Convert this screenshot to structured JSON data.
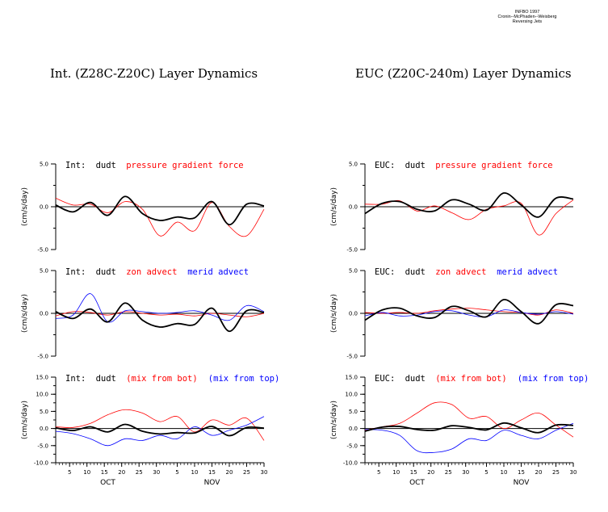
{
  "header": {
    "credit_lines": [
      "INFBO 1997",
      "Cronin--McPhaden--Weisberg",
      "Reversing Jets"
    ]
  },
  "panel_titles": [
    "Int. (Z28C-Z20C) Layer Dynamics",
    "EUC (Z20C-240m) Layer Dynamics"
  ],
  "colors": {
    "dudt": "#000000",
    "red": "#ff0000",
    "blue": "#0000ff"
  },
  "chart_data": [
    {
      "type": "line",
      "region": "Int:",
      "ylabel": "(cm/s/day)",
      "ylim": [
        -5,
        5
      ],
      "yticks": [
        "5.0",
        "0.0",
        "-5.0"
      ],
      "x": [
        1,
        6,
        11,
        16,
        21,
        26,
        31,
        36,
        41,
        46,
        51,
        56,
        61
      ],
      "series": [
        {
          "name": "dudt",
          "color": "#000000",
          "values": [
            0.2,
            -0.6,
            0.5,
            -1.0,
            1.2,
            -0.8,
            -1.6,
            -1.2,
            -1.3,
            0.6,
            -2.1,
            0.3,
            0.1
          ]
        },
        {
          "name": "pressure gradient force",
          "color": "#ff0000",
          "values": [
            1.0,
            0.2,
            0.3,
            -0.7,
            0.6,
            -0.3,
            -3.4,
            -1.8,
            -2.8,
            0.5,
            -2.3,
            -3.4,
            -0.3
          ]
        }
      ]
    },
    {
      "type": "line",
      "region": "EUC:",
      "ylabel": "(cm/s/day)",
      "ylim": [
        -5,
        5
      ],
      "yticks": [
        "5.0",
        "0.0",
        "-5.0"
      ],
      "x": [
        1,
        6,
        11,
        16,
        21,
        26,
        31,
        36,
        41,
        46,
        51,
        56,
        61
      ],
      "series": [
        {
          "name": "dudt",
          "color": "#000000",
          "values": [
            -0.8,
            0.4,
            0.6,
            -0.3,
            -0.5,
            0.8,
            0.3,
            -0.4,
            1.6,
            0.2,
            -1.2,
            1.0,
            0.9
          ]
        },
        {
          "name": "pressure gradient force",
          "color": "#ff0000",
          "values": [
            0.3,
            0.3,
            0.7,
            -0.5,
            0.1,
            -0.7,
            -1.5,
            -0.3,
            0.1,
            0.4,
            -3.3,
            -0.8,
            0.8
          ]
        }
      ]
    },
    {
      "type": "line",
      "region": "Int:",
      "ylabel": "(cm/s/day)",
      "ylim": [
        -5,
        5
      ],
      "yticks": [
        "5.0",
        "0.0",
        "-5.0"
      ],
      "x": [
        1,
        6,
        11,
        16,
        21,
        26,
        31,
        36,
        41,
        46,
        51,
        56,
        61
      ],
      "series": [
        {
          "name": "dudt",
          "color": "#000000",
          "values": [
            0.2,
            -0.6,
            0.5,
            -1.0,
            1.2,
            -0.8,
            -1.6,
            -1.2,
            -1.3,
            0.6,
            -2.1,
            0.3,
            0.1
          ]
        },
        {
          "name": "zon advect",
          "color": "#ff0000",
          "values": [
            -0.3,
            0.2,
            0.1,
            -0.2,
            0.2,
            0.0,
            -0.2,
            -0.1,
            -0.3,
            0.0,
            -0.2,
            -0.4,
            0.0
          ]
        },
        {
          "name": "merid advect",
          "color": "#0000ff",
          "values": [
            -0.6,
            -0.2,
            2.3,
            -1.0,
            0.3,
            0.2,
            0.0,
            0.1,
            0.3,
            -0.2,
            -0.8,
            0.9,
            0.2
          ]
        }
      ]
    },
    {
      "type": "line",
      "region": "EUC:",
      "ylabel": "(cm/s/day)",
      "ylim": [
        -5,
        5
      ],
      "yticks": [
        "5.0",
        "0.0",
        "-5.0"
      ],
      "x": [
        1,
        6,
        11,
        16,
        21,
        26,
        31,
        36,
        41,
        46,
        51,
        56,
        61
      ],
      "series": [
        {
          "name": "dudt",
          "color": "#000000",
          "values": [
            -0.8,
            0.4,
            0.6,
            -0.3,
            -0.5,
            0.8,
            0.3,
            -0.4,
            1.6,
            0.2,
            -1.2,
            1.0,
            0.9
          ]
        },
        {
          "name": "zon advect",
          "color": "#ff0000",
          "values": [
            0.1,
            0.0,
            0.1,
            0.0,
            0.3,
            0.5,
            0.6,
            0.4,
            0.2,
            0.1,
            -0.2,
            0.4,
            0.0
          ]
        },
        {
          "name": "merid advect",
          "color": "#0000ff",
          "values": [
            -0.3,
            0.1,
            -0.3,
            -0.2,
            0.2,
            0.3,
            -0.2,
            -0.4,
            0.4,
            0.1,
            -0.1,
            0.2,
            -0.1
          ]
        }
      ]
    },
    {
      "type": "line",
      "region": "Int:",
      "ylabel": "(cm/s/day)",
      "ylim": [
        -10,
        15
      ],
      "yticks": [
        "15.0",
        "10.0",
        "5.0",
        "0.0",
        "-5.0",
        "-10.0"
      ],
      "x": [
        1,
        6,
        11,
        16,
        21,
        26,
        31,
        36,
        41,
        46,
        51,
        56,
        61
      ],
      "series": [
        {
          "name": "dudt",
          "color": "#000000",
          "values": [
            0.2,
            -0.6,
            0.5,
            -1.0,
            1.2,
            -0.8,
            -1.6,
            -1.2,
            -1.3,
            0.6,
            -2.1,
            0.3,
            0.1
          ]
        },
        {
          "name": "(mix from bot)",
          "color": "#ff0000",
          "values": [
            0.5,
            0.3,
            1.5,
            4.0,
            5.5,
            4.5,
            2.0,
            3.5,
            -1.0,
            2.5,
            1.0,
            3.0,
            -3.5
          ]
        },
        {
          "name": "(mix from top)",
          "color": "#0000ff",
          "values": [
            -0.8,
            -1.5,
            -3.0,
            -5.0,
            -3.0,
            -3.5,
            -2.0,
            -3.0,
            0.5,
            -2.0,
            -0.5,
            1.0,
            3.5
          ]
        }
      ]
    },
    {
      "type": "line",
      "region": "EUC:",
      "ylabel": "(cm/s/day)",
      "ylim": [
        -10,
        15
      ],
      "yticks": [
        "15.0",
        "10.0",
        "5.0",
        "0.0",
        "-5.0",
        "-10.0"
      ],
      "x": [
        1,
        6,
        11,
        16,
        21,
        26,
        31,
        36,
        41,
        46,
        51,
        56,
        61
      ],
      "series": [
        {
          "name": "dudt",
          "color": "#000000",
          "values": [
            -0.8,
            0.4,
            0.6,
            -0.3,
            -0.5,
            0.8,
            0.3,
            -0.4,
            1.6,
            0.2,
            -1.2,
            1.0,
            0.9
          ]
        },
        {
          "name": "(mix from bot)",
          "color": "#ff0000",
          "values": [
            -0.5,
            0.5,
            1.5,
            4.5,
            7.5,
            7.0,
            3.0,
            3.5,
            0.0,
            2.5,
            4.5,
            1.0,
            -2.5
          ]
        },
        {
          "name": "(mix from top)",
          "color": "#0000ff",
          "values": [
            -0.3,
            -0.5,
            -2.0,
            -6.5,
            -7.0,
            -6.0,
            -3.0,
            -3.5,
            -0.5,
            -2.0,
            -3.0,
            -0.5,
            1.5
          ]
        }
      ]
    }
  ],
  "xaxis": {
    "tick_labels": [
      "5",
      "10",
      "15",
      "20",
      "25",
      "30",
      "5",
      "10",
      "15",
      "20",
      "25",
      "30"
    ],
    "tick_days": [
      5,
      10,
      15,
      20,
      25,
      30,
      36,
      41,
      46,
      51,
      56,
      61
    ],
    "month_labels": [
      "OCT",
      "NOV"
    ],
    "month_days": [
      16,
      46
    ],
    "xlim": [
      1,
      61
    ]
  }
}
